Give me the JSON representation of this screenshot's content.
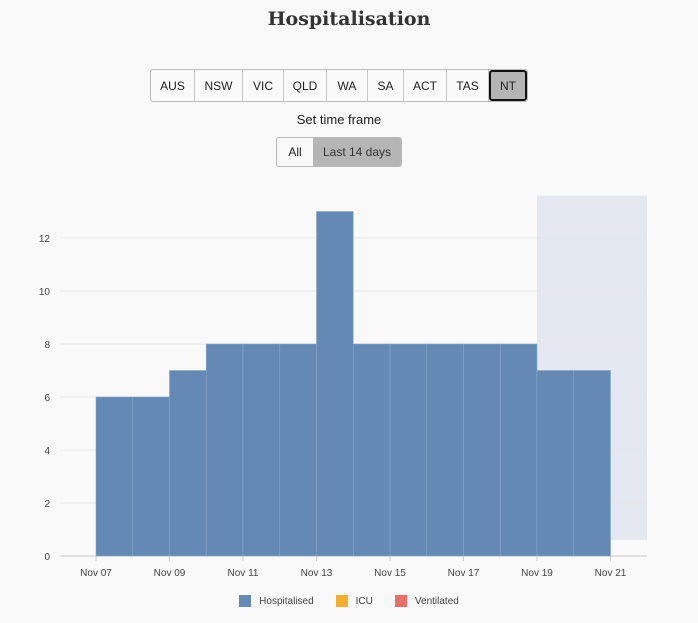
{
  "title": "Hospitalisation",
  "regions": [
    "AUS",
    "NSW",
    "VIC",
    "QLD",
    "WA",
    "SA",
    "ACT",
    "TAS",
    "NT"
  ],
  "active_region": "NT",
  "time_frame": {
    "label": "Set time frame",
    "options": [
      "All",
      "Last 14 days"
    ],
    "active": "Last 14 days"
  },
  "chart_data": {
    "type": "bar",
    "categories": [
      "Nov 07",
      "Nov 08",
      "Nov 09",
      "Nov 10",
      "Nov 11",
      "Nov 12",
      "Nov 13",
      "Nov 14",
      "Nov 15",
      "Nov 16",
      "Nov 17",
      "Nov 18",
      "Nov 19",
      "Nov 20"
    ],
    "series": [
      {
        "name": "Hospitalised",
        "color": "#6589b5",
        "values": [
          6,
          6,
          7,
          8,
          8,
          8,
          13,
          8,
          8,
          8,
          8,
          8,
          7,
          7
        ]
      }
    ],
    "x_tick_labels": [
      "Nov 07",
      "Nov 09",
      "Nov 11",
      "Nov 13",
      "Nov 15",
      "Nov 17",
      "Nov 19",
      "Nov 21"
    ],
    "y_ticks": [
      0,
      2,
      4,
      6,
      8,
      10,
      12
    ],
    "ylim": [
      0,
      13.6
    ],
    "grid": true,
    "shaded_region_start": "Nov 19",
    "legend": [
      {
        "name": "Hospitalised",
        "color": "#6589b5"
      },
      {
        "name": "ICU",
        "color": "#f5ad2f"
      },
      {
        "name": "Ventilated",
        "color": "#e9706a"
      }
    ],
    "legend_position": "bottom"
  }
}
